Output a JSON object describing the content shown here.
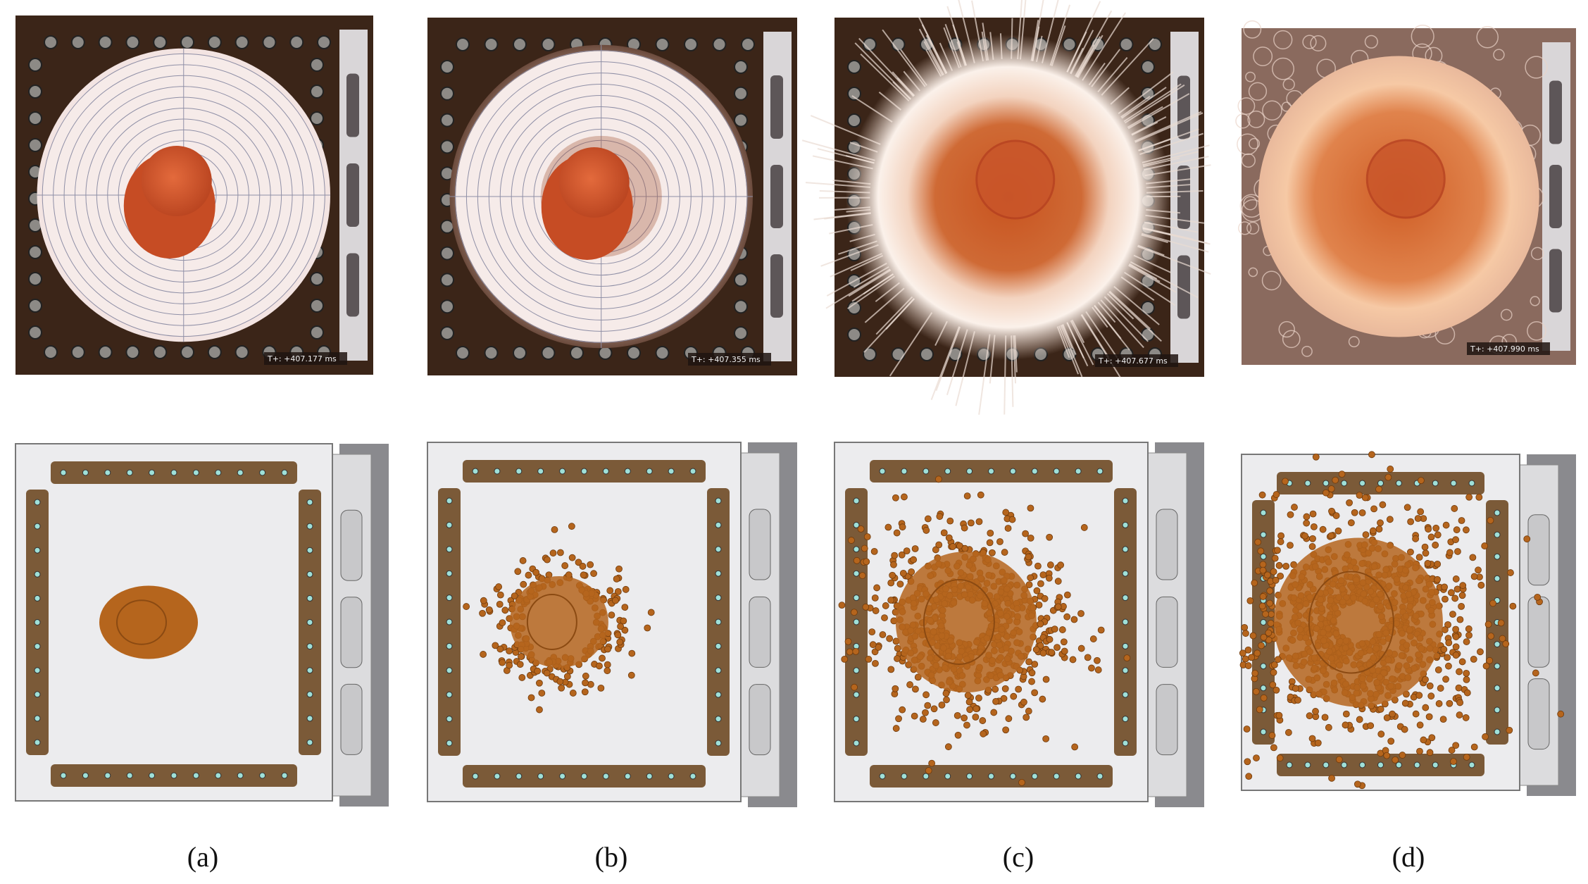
{
  "panels": [
    {
      "label": "(a)",
      "timestamp": "T+: +407.177 ms"
    },
    {
      "label": "(b)",
      "timestamp": "T+: +407.355 ms"
    },
    {
      "label": "(c)",
      "timestamp": "T+: +407.677 ms"
    },
    {
      "label": "(d)",
      "timestamp": "T+: +407.990 ms"
    }
  ]
}
